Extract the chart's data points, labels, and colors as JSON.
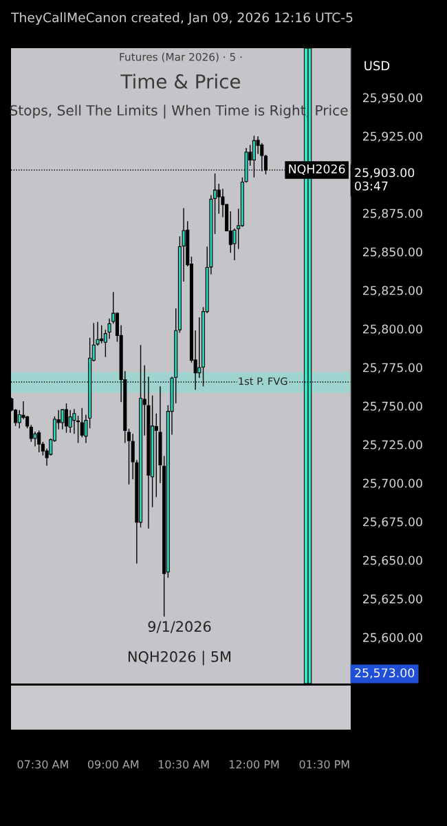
{
  "chart_data": {
    "type": "candlestick",
    "title": "Time & Price",
    "subtitle": "Stops, Sell The Limits | When Time is Right, Price",
    "annotations": [
      "TheyCallMeCanon created, Jan 09, 2026 12:16 UTC-5",
      "Futures (Mar 2026) · 5 ·",
      "USD",
      "9/1/2026",
      "NQH2026 | 5M",
      "25,903.00\n03:47",
      "25,573.00"
    ],
    "x": [
      6.8333,
      6.9167,
      7,
      7.0833,
      7.1667,
      7.25,
      7.3333,
      7.4167,
      7.5,
      7.5833,
      7.6667,
      7.75,
      7.8333,
      7.9167,
      8,
      8.0833,
      8.1667,
      8.25,
      8.3333,
      8.4167,
      8.5,
      8.5833,
      8.6667,
      8.75,
      8.8333,
      8.9167,
      9,
      9.0833,
      9.1667,
      9.25,
      9.3333,
      9.4167,
      9.5,
      9.5833,
      9.6667,
      9.75,
      9.8333,
      9.9167,
      10,
      10.0833,
      10.1667,
      10.25,
      10.3333,
      10.4167,
      10.5,
      10.5833,
      10.6667,
      10.75,
      10.8333,
      10.9167,
      11,
      11.0833,
      11.1667,
      11.25,
      11.3333,
      11.4167,
      11.5,
      11.5833,
      11.6667,
      11.75,
      11.8333,
      11.9167,
      12,
      12.0833,
      12.1667,
      12.25
    ],
    "ohlc": [
      [
        25754.6,
        25755.3,
        25746.5,
        25747.3
      ],
      [
        25747.3,
        25748,
        25737,
        25739.2
      ],
      [
        25739.2,
        25747.3,
        25735.5,
        25744.3
      ],
      [
        25744,
        25753,
        25741.4,
        25742.6
      ],
      [
        25742.9,
        25743.6,
        25735.5,
        25737
      ],
      [
        25736.3,
        25737.7,
        25726.7,
        25728.9
      ],
      [
        25728.9,
        25733.3,
        25723.8,
        25731.9
      ],
      [
        25732.6,
        25734,
        25720,
        25725.2
      ],
      [
        25725.2,
        25726.7,
        25717.9,
        25720.8
      ],
      [
        25720.8,
        25722.3,
        25711.3,
        25716.4
      ],
      [
        25718.6,
        25728.9,
        25717.9,
        25728.2
      ],
      [
        25727.5,
        25743.2,
        25726.7,
        25741.4
      ],
      [
        25741.1,
        25747.3,
        25734.8,
        25739.2
      ],
      [
        25739.2,
        25748,
        25734.8,
        25747.6
      ],
      [
        25747.6,
        25751.7,
        25732.6,
        25737
      ],
      [
        25736.3,
        25747.3,
        25732.6,
        25742.9
      ],
      [
        25740.7,
        25748,
        25731.9,
        25745.1
      ],
      [
        25740.3,
        25743.6,
        25726,
        25739.8
      ],
      [
        25739.2,
        25748.7,
        25729.7,
        25731.1
      ],
      [
        25730.4,
        25744.3,
        25726,
        25740.7
      ],
      [
        25742.1,
        25794.2,
        25735.5,
        25781
      ],
      [
        25779.6,
        25803.8,
        25778.8,
        25789.5
      ],
      [
        25790.1,
        25804.5,
        25789.1,
        25793.1
      ],
      [
        25793.5,
        25802.3,
        25790.6,
        25792.3
      ],
      [
        25791.3,
        25799.4,
        25781.8,
        25796.9
      ],
      [
        25797.9,
        25806.7,
        25793.5,
        25803.3
      ],
      [
        25804.8,
        25823.9,
        25803.3,
        25810.1
      ],
      [
        25810.1,
        25810.7,
        25791.6,
        25795.7
      ],
      [
        25795.7,
        25802.3,
        25752.4,
        25767.1
      ],
      [
        25767.1,
        25772.5,
        25726,
        25734.1
      ],
      [
        25732.9,
        25735.2,
        25699.1,
        25727.5
      ],
      [
        25727,
        25731.9,
        25702.5,
        25713.8
      ],
      [
        25713.2,
        25715,
        25647.8,
        25674.6
      ],
      [
        25674.6,
        25789.5,
        25671.2,
        25754.9
      ],
      [
        25754.3,
        25776.3,
        25730.8,
        25750.9
      ],
      [
        25750.2,
        25769,
        25670.6,
        25705
      ],
      [
        25704,
        25756.8,
        25684.4,
        25737
      ],
      [
        25736.7,
        25745.1,
        25690.8,
        25734.1
      ],
      [
        25732.9,
        25762.7,
        25700,
        25711.7
      ],
      [
        25710.9,
        25717.6,
        25613.4,
        25641.3
      ],
      [
        25642.3,
        25750.5,
        25638.6,
        25746.5
      ],
      [
        25746.5,
        25769,
        25731.4,
        25768.1
      ],
      [
        25768.5,
        25813.3,
        25751.7,
        25798.9
      ],
      [
        25799.4,
        25860,
        25797.5,
        25853.3
      ],
      [
        25853.7,
        25878.2,
        25830.7,
        25863.7
      ],
      [
        25864,
        25869.9,
        25840.5,
        25841.5
      ],
      [
        25842,
        25846.8,
        25778.1,
        25779.6
      ],
      [
        25779.9,
        25799,
        25760.5,
        25771.5
      ],
      [
        25771.5,
        25807.5,
        25768.2,
        25774.9
      ],
      [
        25775.2,
        25814.1,
        25762.7,
        25811.2
      ],
      [
        25811.2,
        25853.3,
        25810.1,
        25839.8
      ],
      [
        25840.1,
        25886.7,
        25835.4,
        25884.1
      ],
      [
        25884.5,
        25900.7,
        25861.5,
        25890
      ],
      [
        25890,
        25894.1,
        25874.7,
        25885.6
      ],
      [
        25885.6,
        25890.8,
        25872.4,
        25880.6
      ],
      [
        25880.6,
        25881,
        25863.3,
        25863.5
      ],
      [
        25863.5,
        25876.2,
        25849.3,
        25854.7
      ],
      [
        25855.2,
        25865,
        25844.5,
        25864
      ],
      [
        25865,
        25877.9,
        25851.8,
        25866.9
      ],
      [
        25866.9,
        25898.2,
        25866.2,
        25895.2
      ],
      [
        25895.5,
        25917.3,
        25894.8,
        25914.6
      ],
      [
        25914.6,
        25919.3,
        25905.8,
        25909.5
      ],
      [
        25909.5,
        25925.2,
        25898.2,
        25922
      ],
      [
        25922.3,
        25924.9,
        25913.4,
        25919
      ],
      [
        25919.3,
        25920.5,
        25902.2,
        25912.4
      ],
      [
        25912,
        25912.9,
        25900.2,
        25903
      ]
    ],
    "colors": [
      "#000000",
      "#000000",
      "#2ad6be",
      "#000000",
      "#000000",
      "#000000",
      "#2ad6be",
      "#000000",
      "#000000",
      "#000000",
      "#2ad6be",
      "#2ad6be",
      "#000000",
      "#2ad6be",
      "#000000",
      "#2ad6be",
      "#2ad6be",
      "#000000",
      "#000000",
      "#2ad6be",
      "#2ad6be",
      "#2ad6be",
      "#2ad6be",
      "#000000",
      "#2ad6be",
      "#2ad6be",
      "#2ad6be",
      "#000000",
      "#000000",
      "#000000",
      "#000000",
      "#000000",
      "#000000",
      "#2ad6be",
      "#000000",
      "#000000",
      "#2ad6be",
      "#000000",
      "#000000",
      "#000000",
      "#2ad6be",
      "#2ad6be",
      "#2ad6be",
      "#2ad6be",
      "#2ad6be",
      "#000000",
      "#000000",
      "#000000",
      "#2ad6be",
      "#2ad6be",
      "#2ad6be",
      "#2ad6be",
      "#2ad6be",
      "#000000",
      "#000000",
      "#000000",
      "#000000",
      "#2ad6be",
      "#2ad6be",
      "#2ad6be",
      "#2ad6be",
      "#000000",
      "#2ad6be",
      "#000000",
      "#000000",
      "#000000"
    ],
    "xlim": [
      6.82,
      14.06
    ],
    "xticks": [
      {
        "value": 7.5,
        "label": "07:30 AM"
      },
      {
        "value": 9,
        "label": "09:00 AM"
      },
      {
        "value": 10.5,
        "label": "10:30 AM"
      },
      {
        "value": 12,
        "label": "12:00 PM"
      },
      {
        "value": 13.5,
        "label": "01:30 PM"
      }
    ],
    "ylim": [
      25570,
      25982
    ],
    "yticks": [
      {
        "value": 25600,
        "label": "25,600.00"
      },
      {
        "value": 25625,
        "label": "25,625.00"
      },
      {
        "value": 25650,
        "label": "25,650.00"
      },
      {
        "value": 25675,
        "label": "25,675.00"
      },
      {
        "value": 25700,
        "label": "25,700.00"
      },
      {
        "value": 25725,
        "label": "25,725.00"
      },
      {
        "value": 25750,
        "label": "25,750.00"
      },
      {
        "value": 25775,
        "label": "25,775.00"
      },
      {
        "value": 25800,
        "label": "25,800.00"
      },
      {
        "value": 25825,
        "label": "25,825.00"
      },
      {
        "value": 25850,
        "label": "25,850.00"
      },
      {
        "value": 25875,
        "label": "25,875.00"
      },
      {
        "value": 25925,
        "label": "25,925.00"
      },
      {
        "value": 25950,
        "label": "25,950.00"
      }
    ],
    "ref_lines": [
      {
        "axis": "y",
        "value": 25903,
        "label": "NQH2026",
        "color": "#000000",
        "line_style": "dotted"
      },
      {
        "axis": "y",
        "value": 25765.5,
        "label": "1st P. FVG",
        "color": "#000000",
        "line_style": "dotted"
      },
      {
        "axis": "x",
        "value": 13.15,
        "color": "#000000",
        "line_style": "solid"
      }
    ],
    "bands": [
      {
        "axis": "y",
        "from": 25758.5,
        "to": 25772,
        "color": "#9fd3cf"
      },
      {
        "axis": "x",
        "from": 13.07,
        "to": 13.22,
        "color": "#2ee8c8"
      }
    ],
    "grid": false
  }
}
